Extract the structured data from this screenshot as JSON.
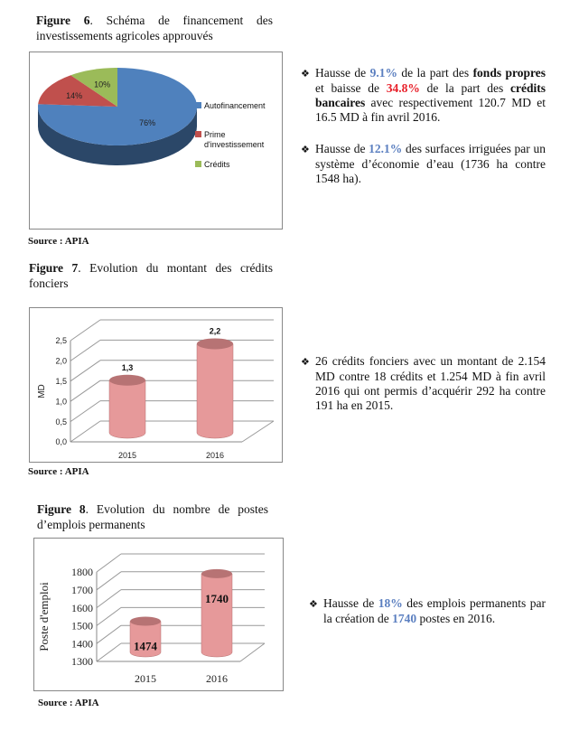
{
  "figure6": {
    "label": "Figure 6",
    "caption": ". Schéma de financement des investissements agricoles approuvés",
    "source": "Source : APIA"
  },
  "figure7": {
    "label": "Figure 7",
    "caption": ". Evolution du montant des crédits fonciers",
    "source": "Source : APIA"
  },
  "figure8": {
    "label": "Figure 8",
    "caption": ". Evolution du nombre de postes d’emplois permanents",
    "source": "Source : APIA"
  },
  "paragraphs": {
    "p1": {
      "a": "Hausse de ",
      "b": "9.1%",
      "c": " de la part des ",
      "d": "fonds propres",
      "e": " et baisse de ",
      "f": "34.8%",
      "g": " de la part des ",
      "h": "crédits bancaires",
      "i": " avec respectivement 120.7 MD et 16.5 MD à fin avril 2016."
    },
    "p2": {
      "a": "Hausse de ",
      "b": "12.1%",
      "c": " des surfaces irriguées par un système d’économie d’eau (1736 ha contre 1548 ha)."
    },
    "p3": {
      "a": "26 crédits fonciers avec un montant de 2.154 MD contre 18 crédits et 1.254 MD à fin avril 2016 qui ont permis d’acquérir 292 ha contre 191 ha en 2015."
    },
    "p4": {
      "a": "Hausse de ",
      "b": "18%",
      "c": " des emplois permanents par la création de ",
      "d": "1740",
      "e": " postes en 2016."
    }
  },
  "bullet_icon": "diamond-dots-bullet",
  "chart_data": [
    {
      "type": "pie",
      "style": "3d",
      "categories": [
        "Autofinancement",
        "Prime d'investissement",
        "Crédits"
      ],
      "values": [
        76,
        14,
        10
      ],
      "labels": [
        "76%",
        "14%",
        "10%"
      ],
      "colors": [
        "#4f81bd",
        "#c0504d",
        "#9bbb59"
      ],
      "legend": "right"
    },
    {
      "type": "bar",
      "style": "3d-cylinder",
      "categories": [
        "2015",
        "2016"
      ],
      "values": [
        1.3,
        2.2
      ],
      "labels": [
        "1,3",
        "2,2"
      ],
      "ylabel": "MD",
      "ylim": [
        0,
        2.5
      ],
      "yticks": [
        "0,0",
        "0,5",
        "1,0",
        "1,5",
        "2,0",
        "2,5"
      ],
      "grid": true,
      "color": "#e6999a"
    },
    {
      "type": "bar",
      "style": "3d-cylinder",
      "categories": [
        "2015",
        "2016"
      ],
      "values": [
        1474,
        1740
      ],
      "labels": [
        "1474",
        "1740"
      ],
      "ylabel": "Poste d'emploi",
      "ylim": [
        1300,
        1800
      ],
      "yticks": [
        "1300",
        "1400",
        "1500",
        "1600",
        "1700",
        "1800"
      ],
      "grid": true,
      "color": "#e6999a"
    }
  ]
}
